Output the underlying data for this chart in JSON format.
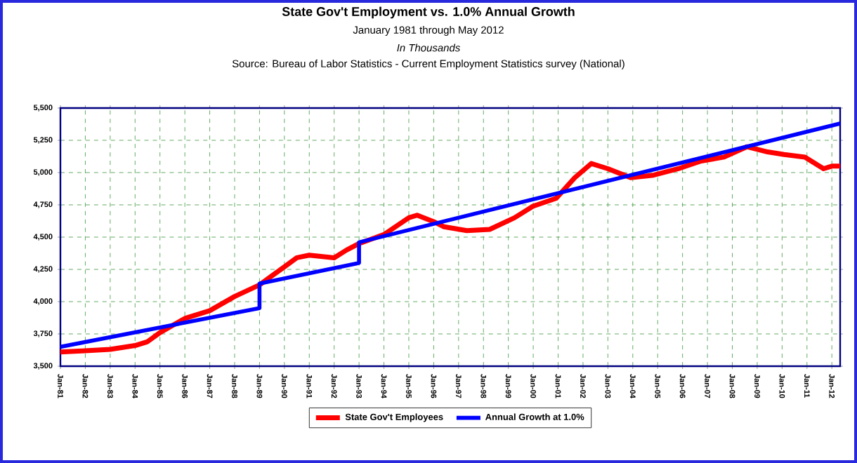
{
  "chart_data": {
    "type": "line",
    "title": "State Gov't Employment vs. 1.0% Annual Growth",
    "subtitle": "January 1981 through May 2012",
    "annotations": [
      "In Thousands",
      "Source: Bureau of Labor Statistics - Current Employment Statistics survey (National)"
    ],
    "xlim": [
      "1981-01",
      "2012-05"
    ],
    "ylim": [
      3500,
      5500
    ],
    "xticks": [
      {
        "value": "1981-01",
        "label": "Jan-81"
      },
      {
        "value": "1982-01",
        "label": "Jan-82"
      },
      {
        "value": "1983-01",
        "label": "Jan-83"
      },
      {
        "value": "1984-01",
        "label": "Jan-84"
      },
      {
        "value": "1985-01",
        "label": "Jan-85"
      },
      {
        "value": "1986-01",
        "label": "Jan-86"
      },
      {
        "value": "1987-01",
        "label": "Jan-87"
      },
      {
        "value": "1988-01",
        "label": "Jan-88"
      },
      {
        "value": "1989-01",
        "label": "Jan-89"
      },
      {
        "value": "1990-01",
        "label": "Jan-90"
      },
      {
        "value": "1991-01",
        "label": "Jan-91"
      },
      {
        "value": "1992-01",
        "label": "Jan-92"
      },
      {
        "value": "1993-01",
        "label": "Jan-93"
      },
      {
        "value": "1994-01",
        "label": "Jan-94"
      },
      {
        "value": "1995-01",
        "label": "Jan-95"
      },
      {
        "value": "1996-01",
        "label": "Jan-96"
      },
      {
        "value": "1997-01",
        "label": "Jan-97"
      },
      {
        "value": "1998-01",
        "label": "Jan-98"
      },
      {
        "value": "1999-01",
        "label": "Jan-99"
      },
      {
        "value": "2000-01",
        "label": "Jan-00"
      },
      {
        "value": "2001-01",
        "label": "Jan-01"
      },
      {
        "value": "2002-01",
        "label": "Jan-02"
      },
      {
        "value": "2003-01",
        "label": "Jan-03"
      },
      {
        "value": "2004-01",
        "label": "Jan-04"
      },
      {
        "value": "2005-01",
        "label": "Jan-05"
      },
      {
        "value": "2006-01",
        "label": "Jan-06"
      },
      {
        "value": "2007-01",
        "label": "Jan-07"
      },
      {
        "value": "2008-01",
        "label": "Jan-08"
      },
      {
        "value": "2009-01",
        "label": "Jan-09"
      },
      {
        "value": "2010-01",
        "label": "Jan-10"
      },
      {
        "value": "2011-01",
        "label": "Jan-11"
      },
      {
        "value": "2012-01",
        "label": "Jan-12"
      }
    ],
    "yticks": [
      {
        "value": 3500,
        "label": "3,500"
      },
      {
        "value": 3750,
        "label": "3,750"
      },
      {
        "value": 4000,
        "label": "4,000"
      },
      {
        "value": 4250,
        "label": "4,250"
      },
      {
        "value": 4500,
        "label": "4,500"
      },
      {
        "value": 4750,
        "label": "4,750"
      },
      {
        "value": 5000,
        "label": "5,000"
      },
      {
        "value": 5250,
        "label": "5,250"
      },
      {
        "value": 5500,
        "label": "5,500"
      }
    ],
    "grid": true,
    "legend": "bottom",
    "line_style": "solid",
    "series": [
      {
        "name": "State Gov't Employees",
        "color": "#ff0000",
        "x": [
          "1981-01",
          "1982-01",
          "1983-01",
          "1984-01",
          "1984-07",
          "1985-01",
          "1986-01",
          "1987-01",
          "1988-01",
          "1989-01",
          "1989-07",
          "1990-01",
          "1990-07",
          "1991-01",
          "1992-01",
          "1992-07",
          "1993-01",
          "1994-01",
          "1995-01",
          "1995-05",
          "1996-01",
          "1996-06",
          "1997-05",
          "1998-04",
          "1999-04",
          "2000-01",
          "2000-12",
          "2001-09",
          "2002-05",
          "2003-01",
          "2003-12",
          "2004-11",
          "2005-11",
          "2006-10",
          "2007-09",
          "2008-08",
          "2009-06",
          "2010-02",
          "2010-12",
          "2011-09",
          "2012-01",
          "2012-05"
        ],
        "values": [
          3610,
          3620,
          3630,
          3660,
          3690,
          3760,
          3870,
          3930,
          4040,
          4130,
          4200,
          4270,
          4340,
          4360,
          4340,
          4400,
          4450,
          4520,
          4650,
          4670,
          4620,
          4580,
          4550,
          4560,
          4650,
          4740,
          4800,
          4960,
          5070,
          5030,
          4960,
          4980,
          5030,
          5090,
          5120,
          5200,
          5160,
          5140,
          5120,
          5030,
          5050,
          5050
        ]
      },
      {
        "name": "Annual Growth at 1.0%",
        "color": "#0000ff",
        "x": [
          "1981-01",
          "1989-01",
          "1989-01",
          "1993-01",
          "1993-01",
          "2012-05"
        ],
        "values": [
          3650,
          3950,
          4140,
          4300,
          4460,
          5380
        ]
      }
    ]
  }
}
